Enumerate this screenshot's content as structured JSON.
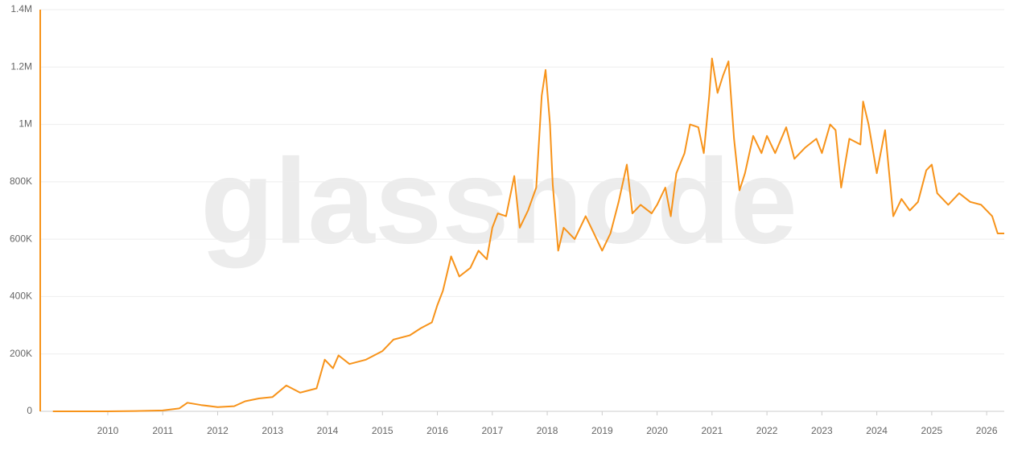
{
  "chart_data": {
    "type": "line",
    "watermark": "glassnode",
    "x": [
      2009.0,
      2010.0,
      2010.5,
      2011.0,
      2011.3,
      2011.45,
      2011.7,
      2012.0,
      2012.3,
      2012.5,
      2012.75,
      2013.0,
      2013.25,
      2013.5,
      2013.8,
      2013.95,
      2014.1,
      2014.2,
      2014.4,
      2014.7,
      2015.0,
      2015.2,
      2015.5,
      2015.7,
      2015.9,
      2016.0,
      2016.1,
      2016.25,
      2016.4,
      2016.6,
      2016.75,
      2016.9,
      2017.0,
      2017.1,
      2017.25,
      2017.4,
      2017.5,
      2017.65,
      2017.8,
      2017.9,
      2017.97,
      2018.05,
      2018.1,
      2018.2,
      2018.3,
      2018.5,
      2018.7,
      2018.9,
      2019.0,
      2019.15,
      2019.3,
      2019.45,
      2019.55,
      2019.7,
      2019.9,
      2020.0,
      2020.15,
      2020.25,
      2020.35,
      2020.5,
      2020.6,
      2020.75,
      2020.85,
      2020.95,
      2021.0,
      2021.1,
      2021.2,
      2021.3,
      2021.4,
      2021.5,
      2021.6,
      2021.75,
      2021.9,
      2022.0,
      2022.15,
      2022.35,
      2022.5,
      2022.7,
      2022.9,
      2023.0,
      2023.15,
      2023.25,
      2023.35,
      2023.5,
      2023.7,
      2023.75,
      2023.85,
      2024.0,
      2024.15,
      2024.3,
      2024.45,
      2024.6,
      2024.75,
      2024.9,
      2025.0,
      2025.1,
      2025.3,
      2025.5,
      2025.7,
      2025.9,
      2026.1,
      2026.2,
      2026.32
    ],
    "series": [
      {
        "color": "#f7931a",
        "values": [
          0,
          0,
          1000,
          3000,
          10000,
          30000,
          22000,
          15000,
          18000,
          35000,
          45000,
          50000,
          90000,
          65000,
          80000,
          180000,
          150000,
          195000,
          165000,
          180000,
          210000,
          250000,
          265000,
          290000,
          310000,
          370000,
          420000,
          540000,
          470000,
          500000,
          560000,
          530000,
          640000,
          690000,
          680000,
          820000,
          640000,
          700000,
          780000,
          1100000,
          1190000,
          1000000,
          790000,
          560000,
          640000,
          600000,
          680000,
          600000,
          560000,
          620000,
          730000,
          860000,
          690000,
          720000,
          690000,
          720000,
          780000,
          680000,
          830000,
          900000,
          1000000,
          990000,
          900000,
          1100000,
          1230000,
          1110000,
          1170000,
          1220000,
          950000,
          770000,
          830000,
          960000,
          900000,
          960000,
          900000,
          990000,
          880000,
          920000,
          950000,
          900000,
          1000000,
          980000,
          780000,
          950000,
          930000,
          1080000,
          1000000,
          830000,
          980000,
          680000,
          740000,
          700000,
          730000,
          840000,
          860000,
          760000,
          720000,
          760000,
          730000,
          720000,
          680000,
          620000,
          620000
        ]
      }
    ],
    "xlim": [
      2008.77,
      2026.32
    ],
    "xticks": [
      2010,
      2011,
      2012,
      2013,
      2014,
      2015,
      2016,
      2017,
      2018,
      2019,
      2020,
      2021,
      2022,
      2023,
      2024,
      2025,
      2026
    ],
    "ylim": [
      0,
      1400000
    ],
    "yticks": [
      0,
      {
        "value": 200000,
        "label": "200K"
      },
      {
        "value": 400000,
        "label": "400K"
      },
      {
        "value": 600000,
        "label": "600K"
      },
      {
        "value": 800000,
        "label": "800K"
      },
      {
        "value": 1000000,
        "label": "1M"
      },
      {
        "value": 1200000,
        "label": "1.2M"
      },
      {
        "value": 1400000,
        "label": "1.4M"
      }
    ],
    "grid": true
  }
}
